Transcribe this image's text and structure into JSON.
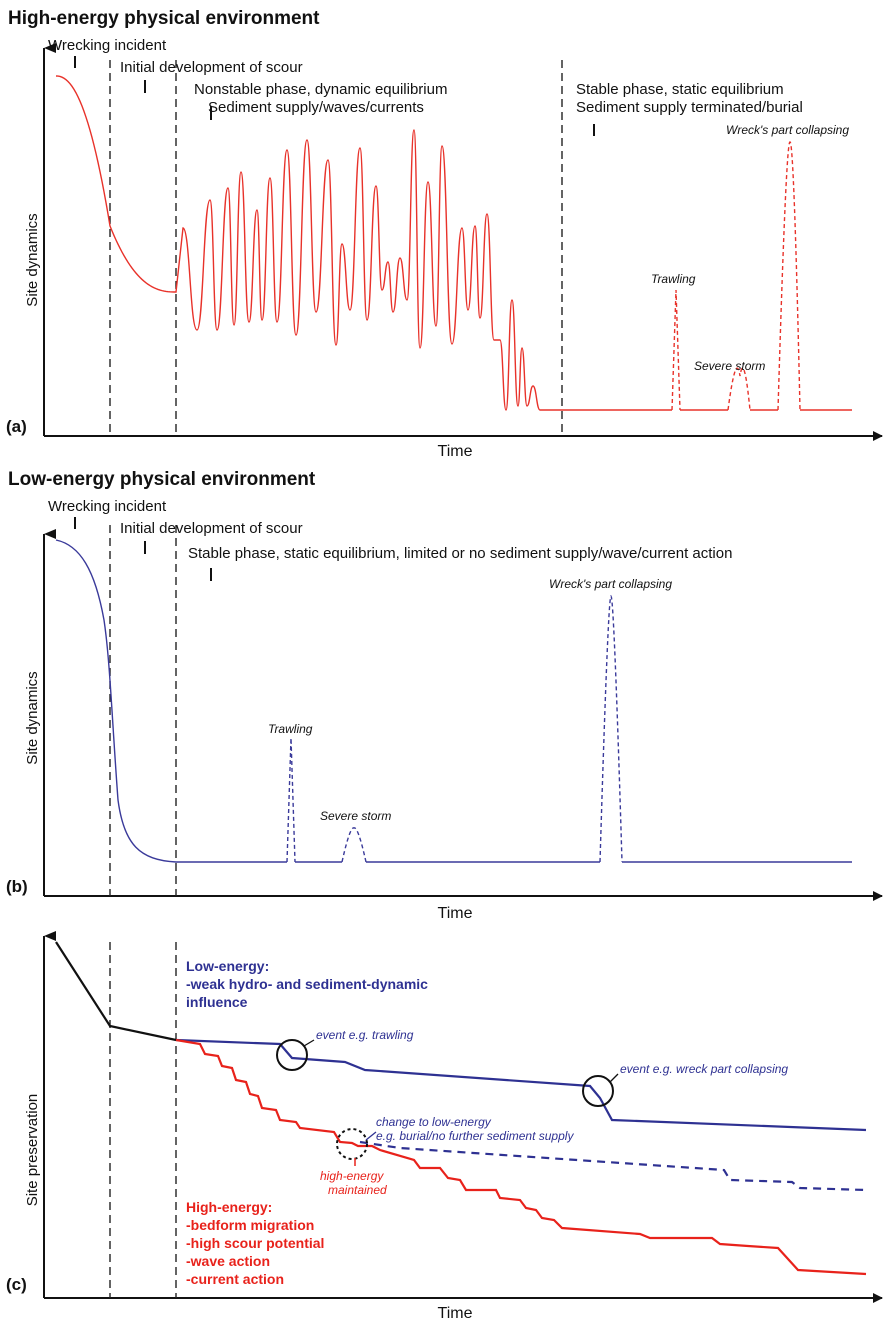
{
  "panel_a": {
    "title": "High-energy physical environment",
    "label": "(a)",
    "y_axis": "Site dynamics",
    "x_axis": "Time",
    "phases": {
      "wrecking": "Wrecking incident",
      "scour": "Initial development of scour",
      "nonstable_1": "Nonstable phase, dynamic equilibrium",
      "nonstable_2": "Sediment supply/waves/currents",
      "stable_1": "Stable phase, static equilibrium",
      "stable_2": "Sediment supply terminated/burial"
    },
    "events": {
      "trawling": "Trawling",
      "storm": "Severe storm",
      "collapse": "Wreck's part collapsing"
    },
    "line_color": "#e8322a"
  },
  "panel_b": {
    "title": "Low-energy physical environment",
    "label": "(b)",
    "y_axis": "Site dynamics",
    "x_axis": "Time",
    "phases": {
      "wrecking": "Wrecking incident",
      "scour": "Initial development of scour",
      "stable": "Stable phase, static equilibrium, limited or no sediment supply/wave/current action"
    },
    "events": {
      "trawling": "Trawling",
      "storm": "Severe storm",
      "collapse": "Wreck's part collapsing"
    },
    "line_color": "#3a3a9a"
  },
  "panel_c": {
    "label": "(c)",
    "y_axis": "Site preservation",
    "x_axis": "Time",
    "low_energy": {
      "line1": "Low-energy:",
      "line2": "-weak hydro- and sediment-dynamic",
      "line3": "influence",
      "color": "#2e3192"
    },
    "high_energy": {
      "line1": "High-energy:",
      "line2": "-bedform migration",
      "line3": "-high scour potential",
      "line4": "-wave action",
      "line5": "-current action",
      "color": "#e8221b"
    },
    "annotations": {
      "trawling": "event e.g. trawling",
      "collapse": "event e.g. wreck part collapsing",
      "change_1": "change to low-energy",
      "change_2": "e.g. burial/no further sediment supply",
      "maintained_1": "high-energy",
      "maintained_2": "maintained"
    }
  }
}
